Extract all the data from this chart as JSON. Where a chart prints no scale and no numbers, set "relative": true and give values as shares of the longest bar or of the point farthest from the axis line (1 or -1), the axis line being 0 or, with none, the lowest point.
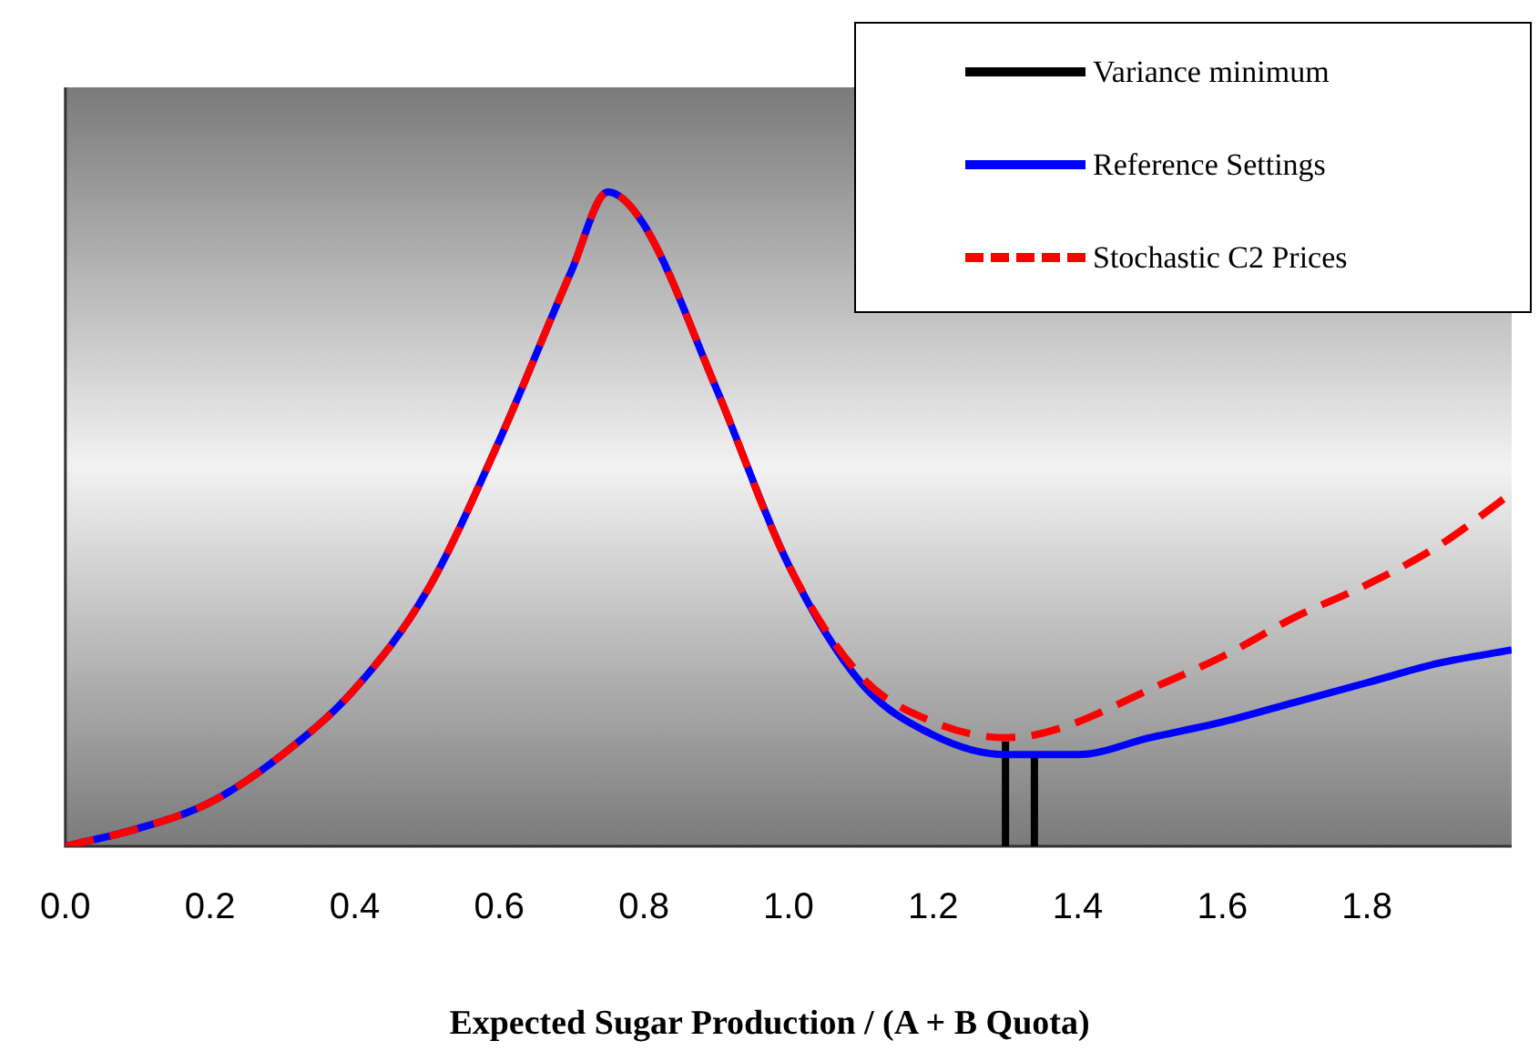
{
  "chart_data": {
    "type": "line",
    "xlabel": "Expected Sugar Production / (A + B Quota)",
    "relative": true,
    "xlim": [
      0,
      2
    ],
    "xticks": [
      {
        "value": 0,
        "label": "0.0"
      },
      {
        "value": 0.2,
        "label": "0.2"
      },
      {
        "value": 0.4,
        "label": "0.4"
      },
      {
        "value": 0.6,
        "label": "0.6"
      },
      {
        "value": 0.8,
        "label": "0.8"
      },
      {
        "value": 1,
        "label": "1.0"
      },
      {
        "value": 1.2,
        "label": "1.2"
      },
      {
        "value": 1.4,
        "label": "1.4"
      },
      {
        "value": 1.6,
        "label": "1.6"
      },
      {
        "value": 1.8,
        "label": "1.8"
      }
    ],
    "grid": false,
    "legend": "top right",
    "marker": "none",
    "series": [
      {
        "name": "Variance minimum",
        "color": "#000000",
        "x": [
          1.3,
          1.3,
          null,
          1.34,
          1.34
        ],
        "values": [
          0,
          0.16,
          null,
          0,
          0.14
        ]
      },
      {
        "name": "Reference Settings",
        "color": "#0000ff",
        "line_style": "solid",
        "x": [
          0,
          0.1,
          0.2,
          0.3,
          0.4,
          0.5,
          0.6,
          0.7,
          0.75,
          0.8,
          0.9,
          1.0,
          1.1,
          1.2,
          1.3,
          1.4,
          1.5,
          1.6,
          1.7,
          1.8,
          1.9,
          2.0
        ],
        "values": [
          0,
          0.027,
          0.067,
          0.14,
          0.24,
          0.39,
          0.62,
          0.88,
          1.0,
          0.95,
          0.7,
          0.43,
          0.25,
          0.17,
          0.14,
          0.14,
          0.166,
          0.19,
          0.22,
          0.25,
          0.28,
          0.3
        ]
      },
      {
        "name": "Stochastic C2 Prices",
        "color": "#ff0000",
        "line_style": "dashed",
        "x": [
          0,
          0.1,
          0.2,
          0.3,
          0.4,
          0.5,
          0.6,
          0.7,
          0.75,
          0.8,
          0.9,
          1.0,
          1.1,
          1.2,
          1.3,
          1.34,
          1.4,
          1.5,
          1.6,
          1.7,
          1.8,
          1.9,
          2.0
        ],
        "values": [
          0,
          0.027,
          0.067,
          0.14,
          0.24,
          0.39,
          0.62,
          0.88,
          1.0,
          0.95,
          0.7,
          0.43,
          0.26,
          0.19,
          0.166,
          0.17,
          0.19,
          0.24,
          0.29,
          0.35,
          0.4,
          0.46,
          0.54
        ]
      }
    ]
  }
}
